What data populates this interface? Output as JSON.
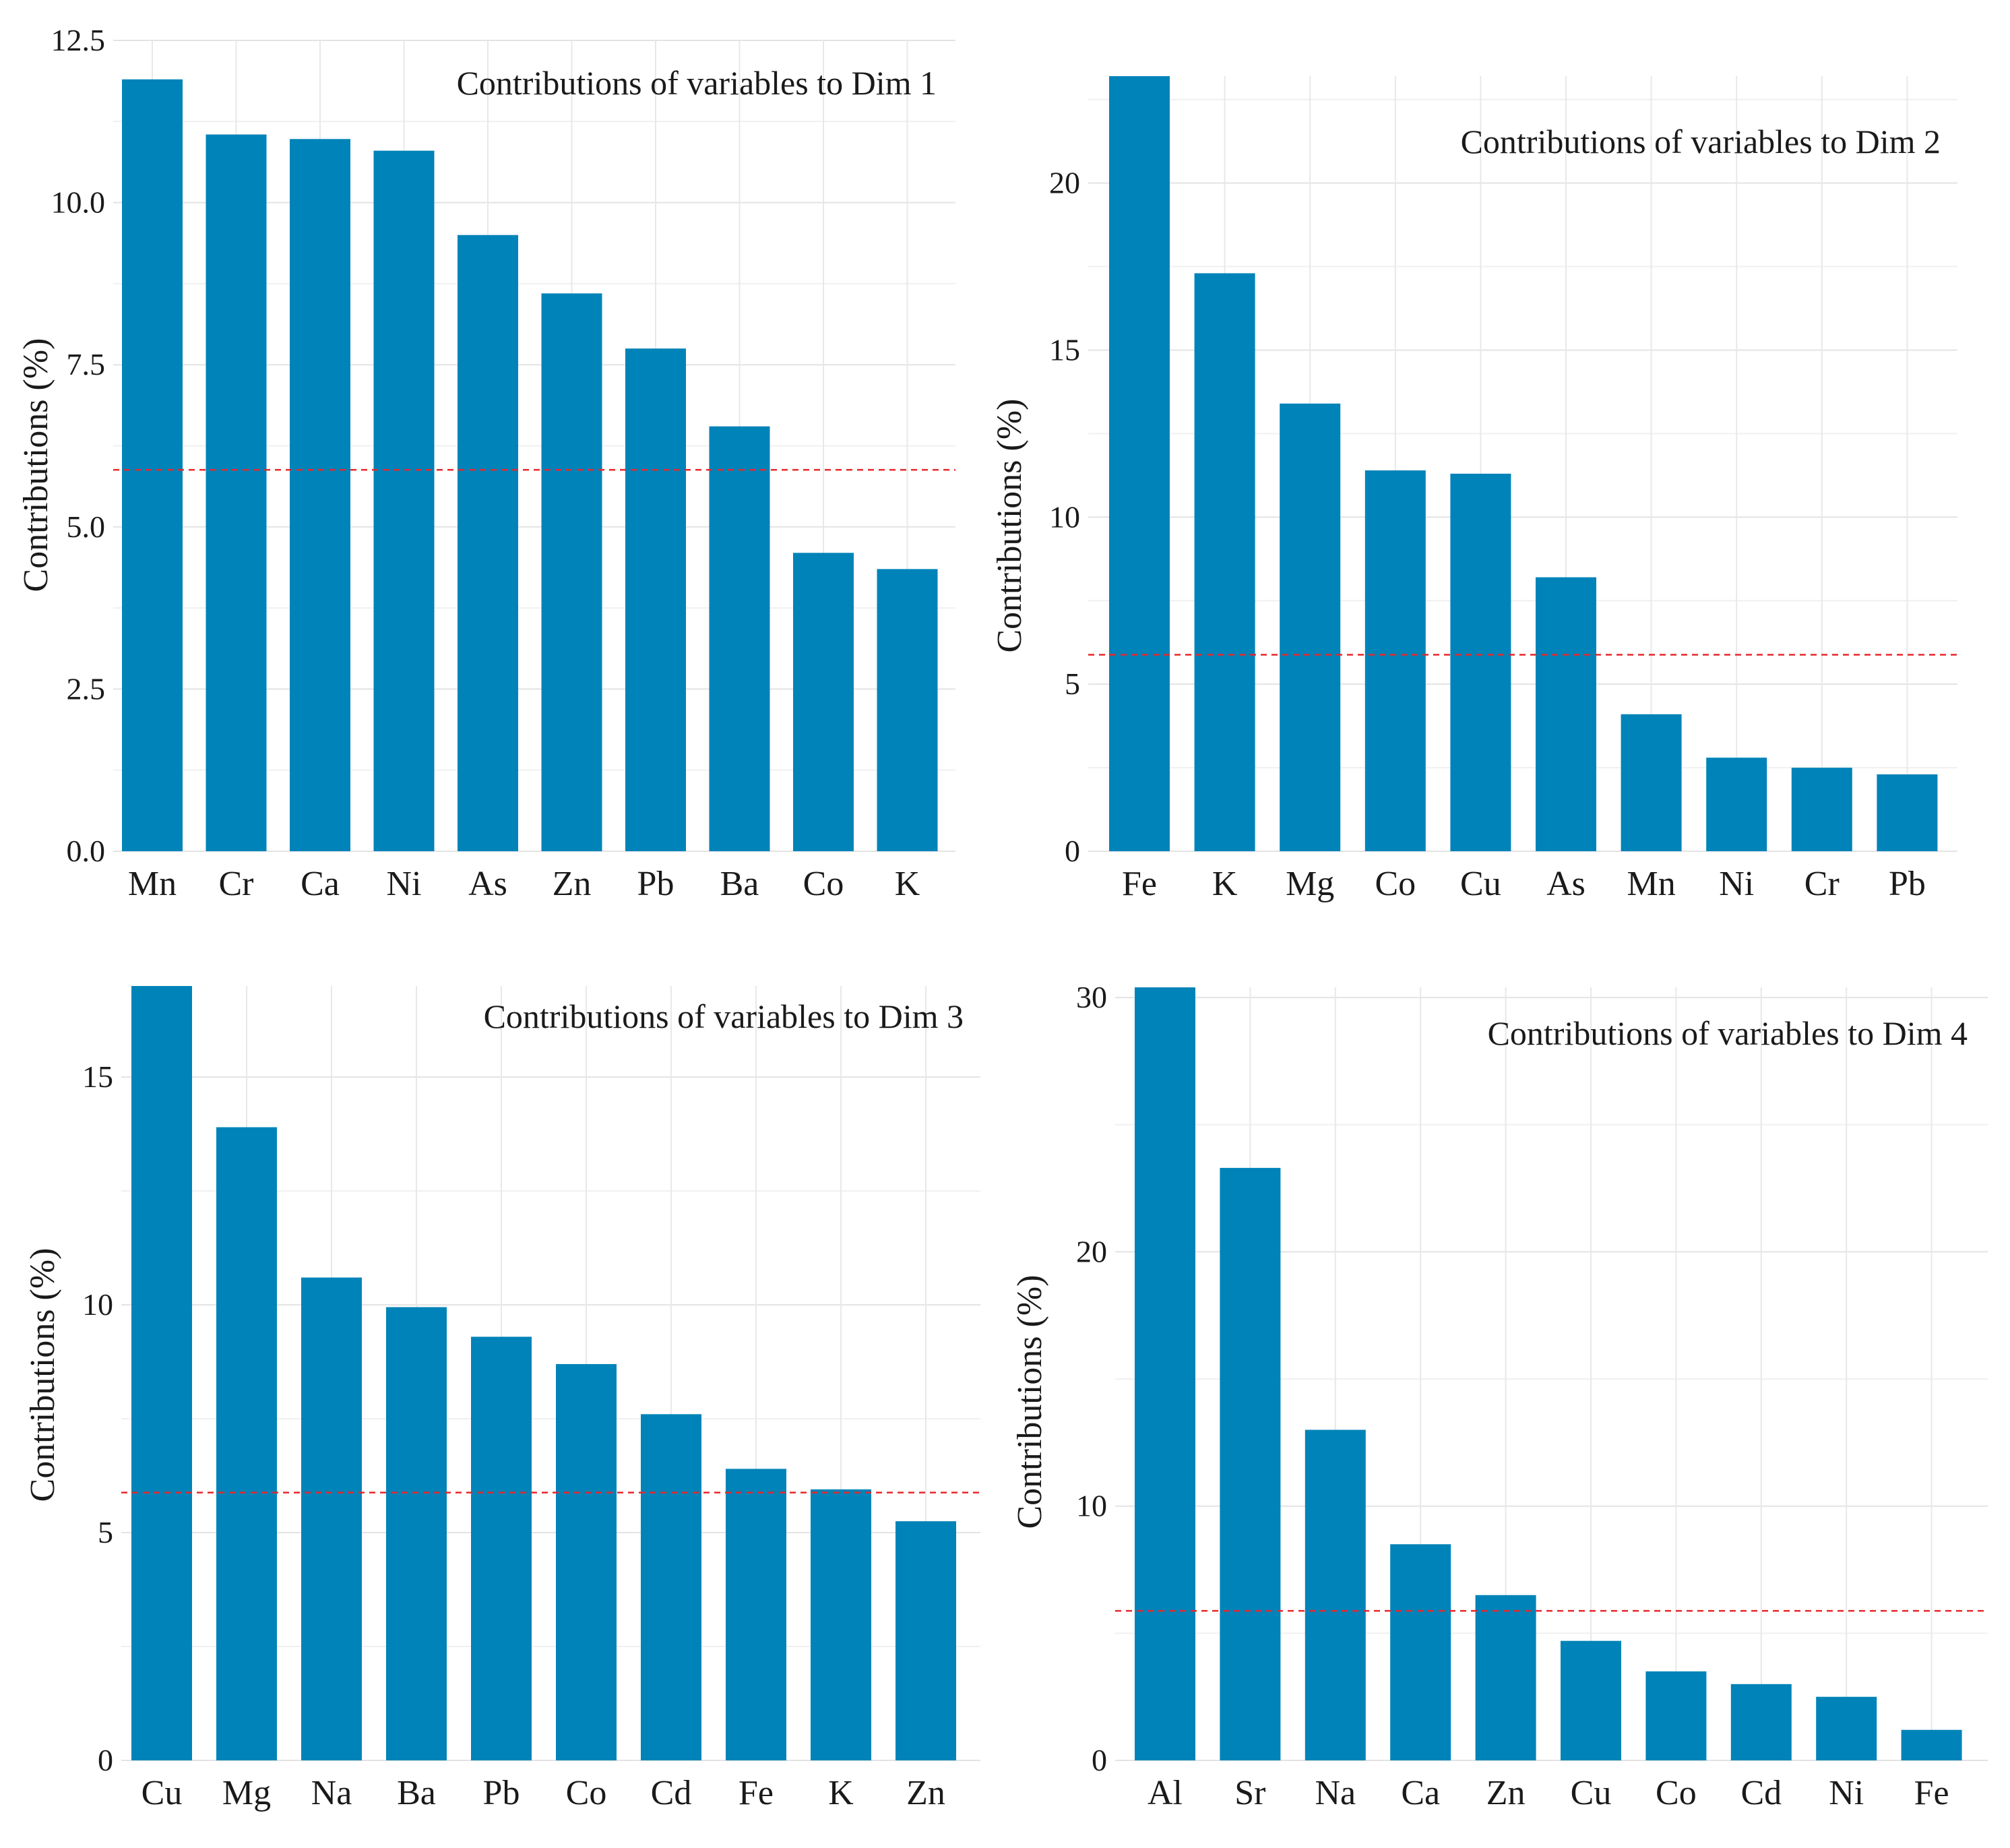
{
  "chart_data": [
    {
      "type": "bar",
      "title": "Contributions of variables to Dim 1",
      "ylabel": "Contributions (%)",
      "xlabel": "",
      "categories": [
        "Mn",
        "Cr",
        "Ca",
        "Ni",
        "As",
        "Zn",
        "Pb",
        "Ba",
        "Co",
        "K"
      ],
      "values": [
        11.9,
        11.05,
        10.98,
        10.8,
        9.5,
        8.6,
        7.75,
        6.55,
        4.6,
        4.35
      ],
      "ylim": [
        0,
        12.5
      ],
      "yticks": [
        0,
        2.5,
        5,
        7.5,
        10,
        12.5
      ],
      "ytick_labels": [
        "0.0",
        "2.5",
        "5.0",
        "7.5",
        "10.0",
        "12.5"
      ],
      "reference_line": 5.88,
      "bar_color": "#0083B8",
      "reference_color": "#E8262B",
      "grid": true,
      "title_position": "top-right"
    },
    {
      "type": "bar",
      "title": "Contributions of variables to Dim 2",
      "ylabel": "Contributions (%)",
      "xlabel": "",
      "categories": [
        "Fe",
        "K",
        "Mg",
        "Co",
        "Cu",
        "As",
        "Mn",
        "Ni",
        "Cr",
        "Pb"
      ],
      "values": [
        23.2,
        17.3,
        13.4,
        11.4,
        11.3,
        8.2,
        4.1,
        2.8,
        2.5,
        2.3
      ],
      "ylim": [
        0,
        23.2
      ],
      "yticks": [
        0,
        5,
        10,
        15,
        20
      ],
      "ytick_labels": [
        "0",
        "5",
        "10",
        "15",
        "20"
      ],
      "reference_line": 5.88,
      "bar_color": "#0083B8",
      "reference_color": "#E8262B",
      "grid": true,
      "title_position": "top-right"
    },
    {
      "type": "bar",
      "title": "Contributions of variables to Dim 3",
      "ylabel": "Contributions (%)",
      "xlabel": "",
      "categories": [
        "Cu",
        "Mg",
        "Na",
        "Ba",
        "Pb",
        "Co",
        "Cd",
        "Fe",
        "K",
        "Zn"
      ],
      "values": [
        17.0,
        13.9,
        10.6,
        9.95,
        9.3,
        8.7,
        7.6,
        6.4,
        5.95,
        5.25
      ],
      "ylim": [
        0,
        17.0
      ],
      "yticks": [
        0,
        5,
        10,
        15
      ],
      "ytick_labels": [
        "0",
        "5",
        "10",
        "15"
      ],
      "reference_line": 5.88,
      "bar_color": "#0083B8",
      "reference_color": "#E8262B",
      "grid": true,
      "title_position": "top-right"
    },
    {
      "type": "bar",
      "title": "Contributions of variables to Dim 4",
      "ylabel": "Contributions (%)",
      "xlabel": "",
      "categories": [
        "Al",
        "Sr",
        "Na",
        "Ca",
        "Zn",
        "Cu",
        "Co",
        "Cd",
        "Ni",
        "Fe"
      ],
      "values": [
        30.4,
        23.3,
        13.0,
        8.5,
        6.5,
        4.7,
        3.5,
        3.0,
        2.5,
        1.2
      ],
      "ylim": [
        0,
        30.4
      ],
      "yticks": [
        0,
        10,
        20,
        30
      ],
      "ytick_labels": [
        "0",
        "10",
        "20",
        "30"
      ],
      "reference_line": 5.88,
      "bar_color": "#0083B8",
      "reference_color": "#E8262B",
      "grid": true,
      "title_position": "top-right"
    }
  ]
}
